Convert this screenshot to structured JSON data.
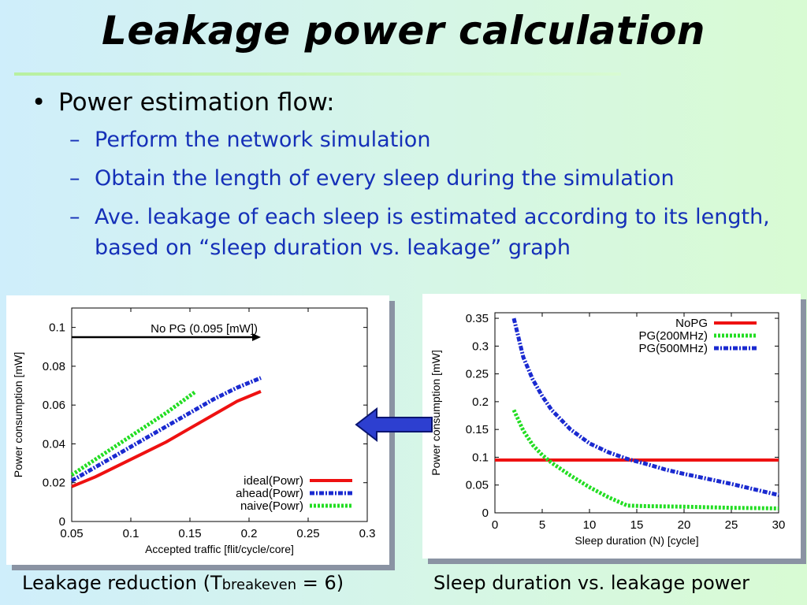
{
  "slide": {
    "title": "Leakage power calculation",
    "bullet": "Power estimation flow:",
    "subbullets": [
      "Perform the network simulation",
      "Obtain the length of every sleep during the simulation",
      "Ave. leakage of each sleep is estimated according to its length, based on “sleep duration vs. leakage” graph"
    ],
    "caption_left_prefix": "Leakage reduction (T",
    "caption_left_sub": "breakeven",
    "caption_left_suffix": " = 6)",
    "caption_right": "Sleep duration vs. leakage power"
  },
  "chart_data": [
    {
      "type": "line",
      "xlabel": "Accepted traffic [flit/cycle/core]",
      "ylabel": "Power consumption [mW]",
      "xlim": [
        0.05,
        0.3
      ],
      "ylim": [
        0,
        0.11
      ],
      "xticks": [
        "0.05",
        "0.1",
        "0.15",
        "0.2",
        "0.25",
        "0.3"
      ],
      "yticks": [
        "0",
        "0.02",
        "0.04",
        "0.06",
        "0.08",
        "0.1"
      ],
      "annotation": "No PG (0.095 [mW])",
      "annotation_value": 0.095,
      "legend_position": "bottom-right",
      "series": [
        {
          "name": "ideal(Powr)",
          "color": "#ee1111",
          "style": "solid",
          "x": [
            0.05,
            0.07,
            0.09,
            0.11,
            0.13,
            0.15,
            0.17,
            0.19,
            0.21
          ],
          "y": [
            0.018,
            0.023,
            0.029,
            0.035,
            0.041,
            0.048,
            0.055,
            0.062,
            0.067
          ]
        },
        {
          "name": "ahead(Powr)",
          "color": "#1a2ad0",
          "style": "dashdot",
          "x": [
            0.05,
            0.07,
            0.09,
            0.11,
            0.13,
            0.15,
            0.17,
            0.19,
            0.21
          ],
          "y": [
            0.021,
            0.028,
            0.035,
            0.042,
            0.049,
            0.056,
            0.063,
            0.069,
            0.074
          ]
        },
        {
          "name": "naive(Powr)",
          "color": "#22dd22",
          "style": "dotted",
          "x": [
            0.05,
            0.07,
            0.09,
            0.11,
            0.13,
            0.155
          ],
          "y": [
            0.024,
            0.032,
            0.04,
            0.048,
            0.056,
            0.067
          ]
        }
      ]
    },
    {
      "type": "line",
      "xlabel": "Sleep duration (N) [cycle]",
      "ylabel": "Power consumption [mW]",
      "xlim": [
        0,
        30
      ],
      "ylim": [
        0,
        0.36
      ],
      "xticks": [
        "0",
        "5",
        "10",
        "15",
        "20",
        "25",
        "30"
      ],
      "yticks": [
        "0",
        "0.05",
        "0.1",
        "0.15",
        "0.2",
        "0.25",
        "0.3",
        "0.35"
      ],
      "legend_position": "top-right",
      "series": [
        {
          "name": "NoPG",
          "color": "#ee1111",
          "style": "solid",
          "x": [
            0,
            30
          ],
          "y": [
            0.095,
            0.095
          ]
        },
        {
          "name": "PG(200MHz)",
          "color": "#22dd22",
          "style": "dotted",
          "x": [
            2,
            3,
            4,
            5,
            6,
            8,
            10,
            12,
            14,
            16,
            20,
            25,
            30
          ],
          "y": [
            0.185,
            0.148,
            0.122,
            0.104,
            0.09,
            0.067,
            0.046,
            0.028,
            0.013,
            0.012,
            0.011,
            0.009,
            0.008
          ]
        },
        {
          "name": "PG(500MHz)",
          "color": "#1a2ad0",
          "style": "dashdot",
          "x": [
            2,
            3,
            4,
            5,
            6,
            8,
            10,
            12,
            14,
            16,
            18,
            20,
            22,
            25,
            28,
            30
          ],
          "y": [
            0.35,
            0.28,
            0.24,
            0.21,
            0.185,
            0.15,
            0.125,
            0.109,
            0.097,
            0.088,
            0.078,
            0.07,
            0.063,
            0.052,
            0.04,
            0.032
          ]
        }
      ]
    }
  ]
}
